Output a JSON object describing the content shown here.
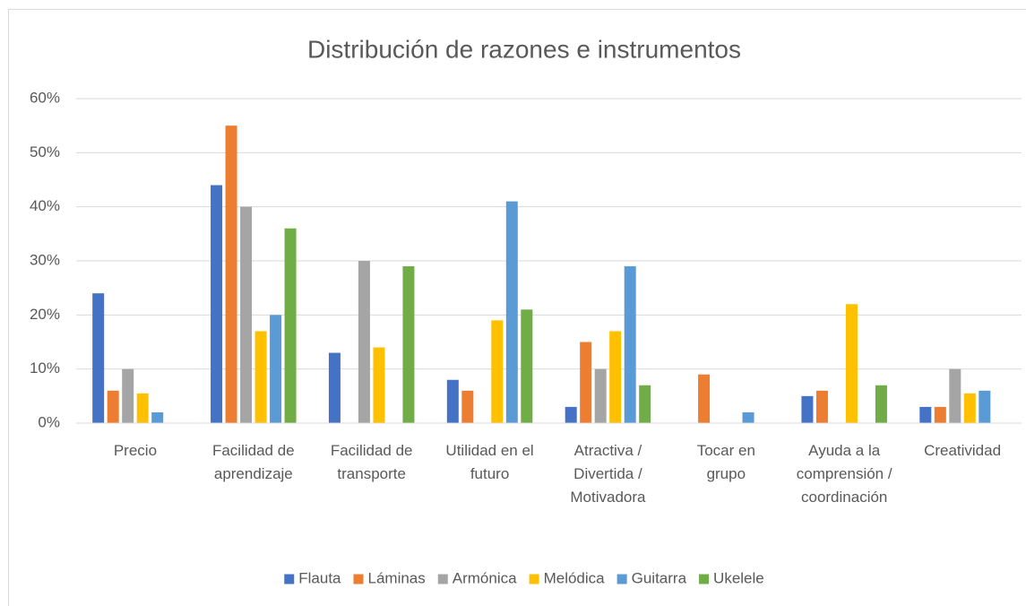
{
  "chart_data": {
    "type": "bar",
    "title": "Distribución de razones e instrumentos",
    "categories": [
      "Precio",
      "Facilidad de aprendizaje",
      "Facilidad de transporte",
      "Utilidad en el futuro",
      "Atractiva / Divertida / Motivadora",
      "Tocar en grupo",
      "Ayuda a la comprensión / coordinación",
      "Creatividad"
    ],
    "series": [
      {
        "name": "Flauta",
        "color": "#4472c4",
        "values": [
          24,
          44,
          13,
          8,
          3,
          0,
          5,
          3
        ]
      },
      {
        "name": "Láminas",
        "color": "#ed7d31",
        "values": [
          6,
          55,
          0,
          6,
          15,
          9,
          6,
          3
        ]
      },
      {
        "name": "Armónica",
        "color": "#a5a5a5",
        "values": [
          10,
          40,
          30,
          0,
          10,
          0,
          0,
          10
        ]
      },
      {
        "name": "Melódica",
        "color": "#ffc000",
        "values": [
          5.5,
          17,
          14,
          19,
          17,
          0,
          22,
          5.5
        ]
      },
      {
        "name": "Guitarra",
        "color": "#5b9bd5",
        "values": [
          2,
          20,
          0,
          41,
          29,
          2,
          0,
          6
        ]
      },
      {
        "name": "Ukelele",
        "color": "#70ad47",
        "values": [
          0,
          36,
          29,
          21,
          7,
          0,
          7,
          0
        ]
      }
    ],
    "ylim": [
      0,
      60
    ],
    "yticks": [
      {
        "value": 0,
        "label": "0%"
      },
      {
        "value": 10,
        "label": "10%"
      },
      {
        "value": 20,
        "label": "20%"
      },
      {
        "value": 30,
        "label": "30%"
      },
      {
        "value": 40,
        "label": "40%"
      },
      {
        "value": 50,
        "label": "50%"
      },
      {
        "value": 60,
        "label": "60%"
      }
    ],
    "grid": true,
    "legend": "bottom"
  }
}
